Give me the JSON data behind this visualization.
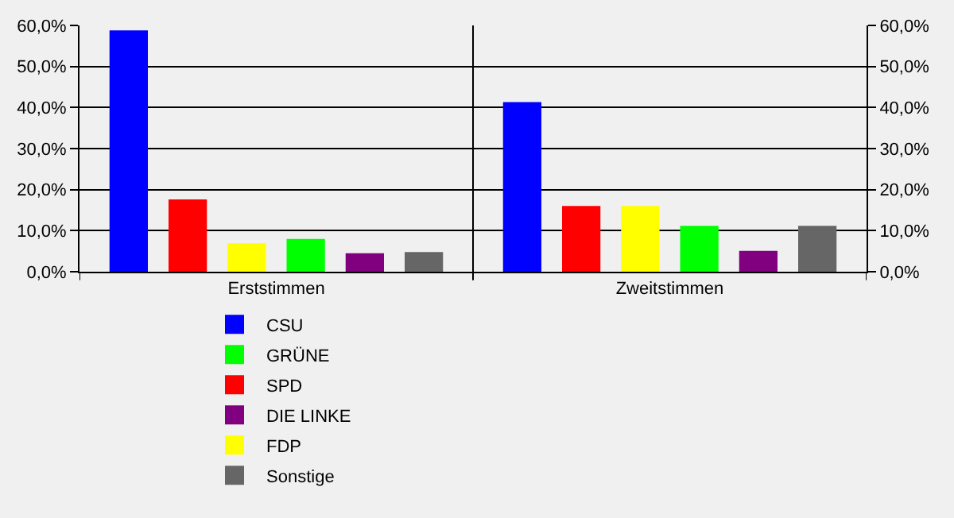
{
  "chart_data": {
    "type": "bar",
    "categories": [
      "Erststimmen",
      "Zweitstimmen"
    ],
    "series": [
      {
        "name": "CSU",
        "color": "#0000ff",
        "values": [
          58.8,
          41.3
        ]
      },
      {
        "name": "SPD",
        "color": "#ff0000",
        "values": [
          17.6,
          16.0
        ]
      },
      {
        "name": "FDP",
        "color": "#ffff00",
        "values": [
          6.9,
          16.0
        ]
      },
      {
        "name": "GRÜNE",
        "color": "#00ff00",
        "values": [
          8.0,
          11.2
        ]
      },
      {
        "name": "DIE LINKE",
        "color": "#800080",
        "values": [
          4.5,
          5.1
        ]
      },
      {
        "name": "Sonstige",
        "color": "#666666",
        "values": [
          4.8,
          11.2
        ]
      }
    ],
    "ylim": [
      0,
      60
    ],
    "yticks": [
      {
        "value": 0,
        "label": "0,0%"
      },
      {
        "value": 10,
        "label": "10,0%"
      },
      {
        "value": 20,
        "label": "20,0%"
      },
      {
        "value": 30,
        "label": "30,0%"
      },
      {
        "value": 40,
        "label": "40,0%"
      },
      {
        "value": 50,
        "label": "50,0%"
      },
      {
        "value": 60,
        "label": "60,0%"
      }
    ],
    "y2lim": [
      0,
      60
    ],
    "y2ticks": [
      {
        "value": 0,
        "label": "0,0%"
      },
      {
        "value": 10,
        "label": "10,0%"
      },
      {
        "value": 20,
        "label": "20,0%"
      },
      {
        "value": 30,
        "label": "30,0%"
      },
      {
        "value": 40,
        "label": "40,0%"
      },
      {
        "value": 50,
        "label": "50,0%"
      },
      {
        "value": 60,
        "label": "60,0%"
      }
    ],
    "grid": true,
    "legend": "bottom"
  }
}
